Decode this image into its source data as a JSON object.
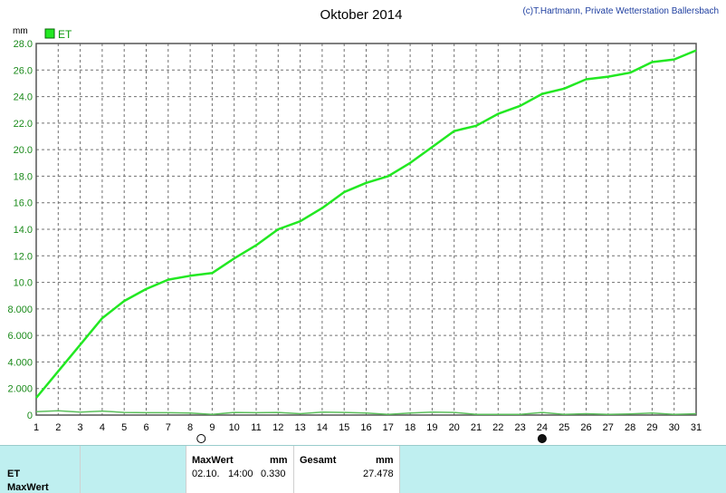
{
  "title": "Oktober 2014",
  "copyright": "(c)T.Hartmann, Private Wetterstation Ballersbach",
  "chart_data": {
    "type": "line",
    "title": "Oktober 2014",
    "unit": "mm",
    "x": [
      1,
      2,
      3,
      4,
      5,
      6,
      7,
      8,
      9,
      10,
      11,
      12,
      13,
      14,
      15,
      16,
      17,
      18,
      19,
      20,
      21,
      22,
      23,
      24,
      25,
      26,
      27,
      28,
      29,
      30,
      31
    ],
    "xlim": [
      1,
      31
    ],
    "ylim": [
      0,
      28
    ],
    "y_ticks": [
      "0",
      "2.000",
      "4.000",
      "6.000",
      "8.000",
      "10.0",
      "12.0",
      "14.0",
      "16.0",
      "18.0",
      "20.0",
      "22.0",
      "24.0",
      "26.0",
      "28.0"
    ],
    "grid": true,
    "legend": "top-left",
    "series": [
      {
        "name": "ET",
        "color": "#22e822",
        "values": [
          1.3,
          3.3,
          5.3,
          7.3,
          8.6,
          9.5,
          10.2,
          10.5,
          10.7,
          11.8,
          12.8,
          14.0,
          14.6,
          15.6,
          16.8,
          17.5,
          18.0,
          19.0,
          20.2,
          21.4,
          21.8,
          22.7,
          23.3,
          24.2,
          24.6,
          25.3,
          25.5,
          25.8,
          26.6,
          26.8,
          27.478
        ]
      },
      {
        "color": "#5cc05c",
        "values": [
          0.25,
          0.33,
          0.22,
          0.3,
          0.2,
          0.18,
          0.18,
          0.15,
          0.05,
          0.2,
          0.18,
          0.2,
          0.1,
          0.22,
          0.2,
          0.15,
          0.05,
          0.15,
          0.22,
          0.2,
          0.05,
          0.05,
          0.05,
          0.2,
          0.05,
          0.1,
          0.05,
          0.08,
          0.15,
          0.05,
          0.1
        ]
      }
    ],
    "moon_phases": [
      {
        "day": 8.5,
        "phase": "full-moon"
      },
      {
        "day": 24,
        "phase": "new-moon"
      }
    ]
  },
  "footer": {
    "series_label": "ET",
    "row2_label": "MaxWert",
    "max_header": "MaxWert",
    "max_unit": "mm",
    "max_date": "02.10.",
    "max_time": "14:00",
    "max_value": "0.330",
    "total_header": "Gesamt",
    "total_unit": "mm",
    "total_value": "27.478"
  }
}
